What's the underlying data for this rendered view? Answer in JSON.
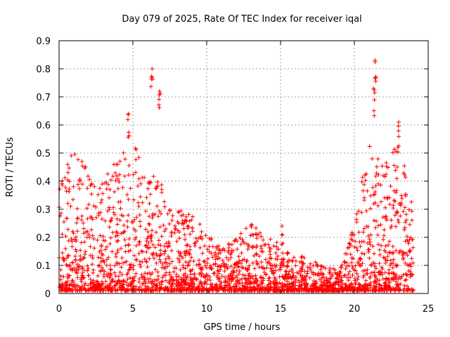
{
  "chart_data": {
    "type": "scatter",
    "title": "Day 079 of 2025, Rate Of TEC Index for receiver iqal",
    "xlabel": "GPS time / hours",
    "ylabel": "ROTI / TECUs",
    "xlim": [
      0,
      25
    ],
    "ylim": [
      0,
      0.9
    ],
    "x_ticks": [
      0,
      5,
      10,
      15,
      20,
      25
    ],
    "x_tick_labels": [
      "0",
      "5",
      "10",
      "15",
      "20",
      "25"
    ],
    "y_ticks": [
      0,
      0.1,
      0.2,
      0.3,
      0.4,
      0.5,
      0.6,
      0.7,
      0.8,
      0.9
    ],
    "y_tick_labels": [
      "0",
      "0.1",
      "0.2",
      "0.3",
      "0.4",
      "0.5",
      "0.6",
      "0.7",
      "0.8",
      "0.9"
    ],
    "grid": true,
    "marker": "+",
    "color": "#ff0000",
    "series": [
      {
        "name": "ROTI",
        "note": "dense cloud of samples; envelope summarized hourly (upper bound) plus notable peaks",
        "envelope_hours": [
          0,
          1,
          2,
          3,
          4,
          5,
          6,
          7,
          8,
          9,
          10,
          11,
          12,
          13,
          14,
          15,
          16,
          17,
          18,
          19,
          20,
          21,
          22,
          23,
          24
        ],
        "envelope_upper": [
          0.45,
          0.5,
          0.48,
          0.4,
          0.5,
          0.55,
          0.45,
          0.4,
          0.3,
          0.28,
          0.22,
          0.18,
          0.2,
          0.25,
          0.2,
          0.18,
          0.15,
          0.12,
          0.1,
          0.09,
          0.25,
          0.55,
          0.45,
          0.55,
          0.35
        ],
        "peaks": [
          {
            "x": 4.7,
            "y": 0.64
          },
          {
            "x": 6.3,
            "y": 0.8
          },
          {
            "x": 6.8,
            "y": 0.72
          },
          {
            "x": 15.1,
            "y": 0.24
          },
          {
            "x": 21.4,
            "y": 0.83
          },
          {
            "x": 21.3,
            "y": 0.73
          },
          {
            "x": 23.0,
            "y": 0.61
          }
        ]
      }
    ]
  }
}
